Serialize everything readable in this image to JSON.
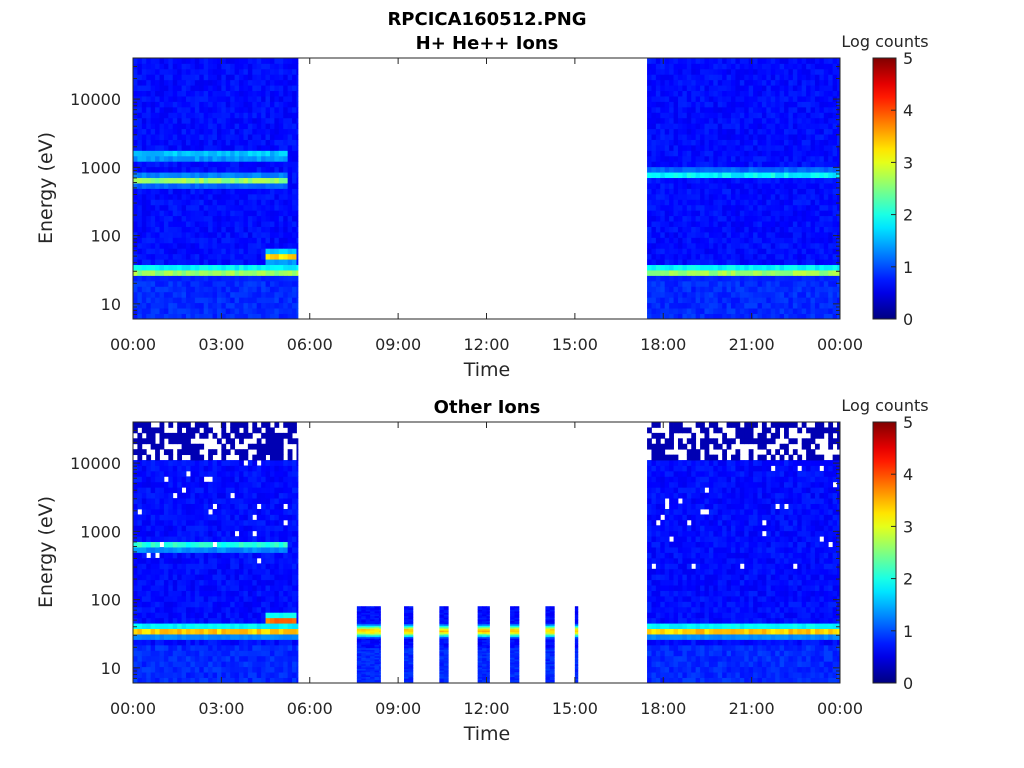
{
  "figure": {
    "title": "RPCICA160512.PNG"
  },
  "colormap": "jet",
  "chart_data": [
    {
      "type": "heatmap",
      "title": "H+ He++ Ions",
      "xlabel": "Time",
      "ylabel": "Energy (eV)",
      "x_ticks": [
        "00:00",
        "03:00",
        "06:00",
        "09:00",
        "12:00",
        "15:00",
        "18:00",
        "21:00",
        "00:00"
      ],
      "x_tick_hours": [
        0,
        3,
        6,
        9,
        12,
        15,
        18,
        21,
        24
      ],
      "xlim_hours": [
        0,
        24
      ],
      "y_scale": "log",
      "y_ticks": [
        "10",
        "100",
        "1000",
        "10000"
      ],
      "y_tick_values": [
        10,
        100,
        1000,
        10000
      ],
      "ylim": [
        6,
        40000
      ],
      "colorbar": {
        "label": "Log counts",
        "ticks": [
          "0",
          "1",
          "2",
          "3",
          "4",
          "5"
        ],
        "range": [
          0,
          5
        ]
      },
      "data_gaps_hours": [
        [
          5.6,
          17.45
        ]
      ],
      "data_intervals_hours": [
        [
          0,
          5.6
        ],
        [
          17.45,
          24
        ]
      ],
      "features": [
        {
          "energy_eV": 30,
          "level": 2.6,
          "t_hours": [
            0,
            24
          ]
        },
        {
          "energy_eV": 650,
          "level": 2.4,
          "t_hours": [
            0,
            5.2
          ]
        },
        {
          "energy_eV": 1500,
          "level": 1.6,
          "t_hours": [
            0,
            5.2
          ]
        },
        {
          "energy_eV": 50,
          "level": 3.1,
          "t_hours": [
            4.5,
            5.6
          ]
        },
        {
          "energy_eV": 800,
          "level": 1.7,
          "t_hours": [
            17.45,
            24
          ]
        }
      ]
    },
    {
      "type": "heatmap",
      "title": "Other Ions",
      "xlabel": "Time",
      "ylabel": "Energy (eV)",
      "x_ticks": [
        "00:00",
        "03:00",
        "06:00",
        "09:00",
        "12:00",
        "15:00",
        "18:00",
        "21:00",
        "00:00"
      ],
      "x_tick_hours": [
        0,
        3,
        6,
        9,
        12,
        15,
        18,
        21,
        24
      ],
      "xlim_hours": [
        0,
        24
      ],
      "y_scale": "log",
      "y_ticks": [
        "10",
        "100",
        "1000",
        "10000"
      ],
      "y_tick_values": [
        10,
        100,
        1000,
        10000
      ],
      "ylim": [
        6,
        40000
      ],
      "colorbar": {
        "label": "Log counts",
        "ticks": [
          "0",
          "1",
          "2",
          "3",
          "4",
          "5"
        ],
        "range": [
          0,
          5
        ]
      },
      "data_intervals_hours": [
        [
          0,
          5.6
        ],
        [
          17.45,
          24
        ]
      ],
      "burst_intervals_hours": [
        [
          7.6,
          8.4
        ],
        [
          9.2,
          9.5
        ],
        [
          10.4,
          10.7
        ],
        [
          11.7,
          12.1
        ],
        [
          12.8,
          13.1
        ],
        [
          14.0,
          14.3
        ],
        [
          15.0,
          15.1
        ]
      ],
      "burst_energy_range_eV": [
        6,
        80
      ],
      "features": [
        {
          "energy_eV": 35,
          "level": 3.2,
          "t_hours": [
            0,
            24
          ]
        },
        {
          "energy_eV": 620,
          "level": 1.9,
          "t_hours": [
            0,
            5.2
          ]
        },
        {
          "energy_eV": 50,
          "level": 3.6,
          "t_hours": [
            4.5,
            5.6
          ]
        }
      ]
    }
  ]
}
